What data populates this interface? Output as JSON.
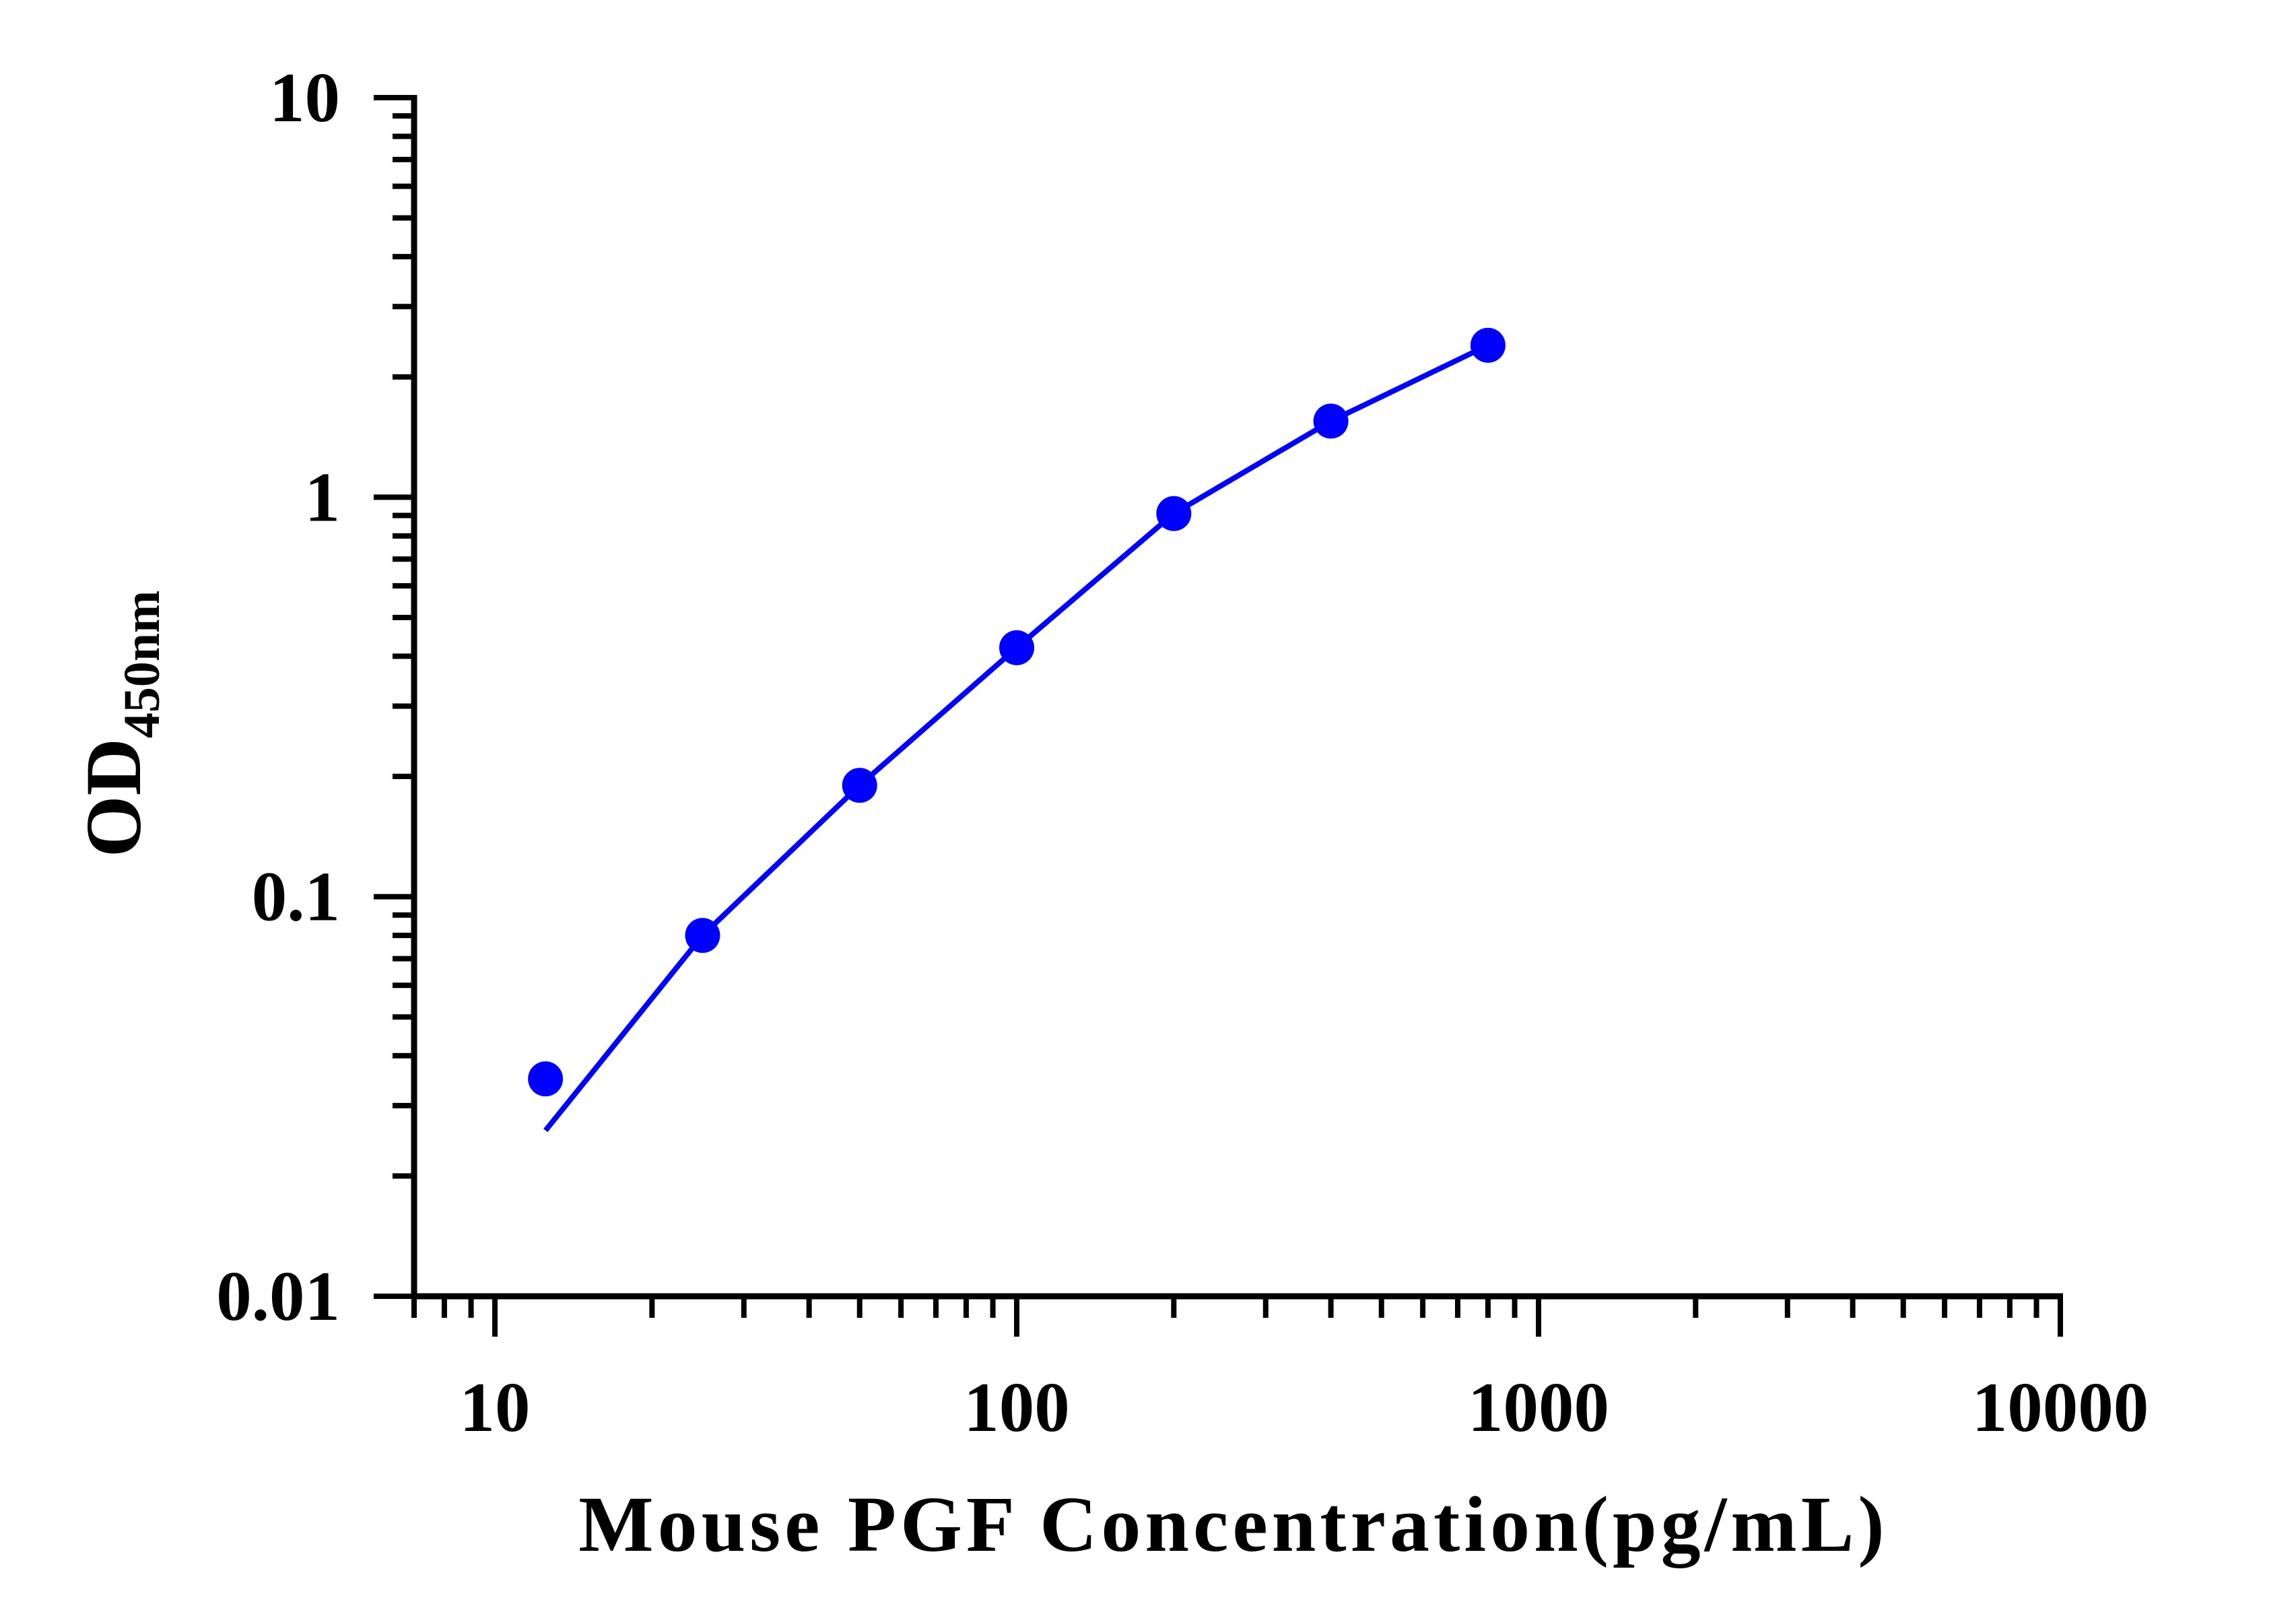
{
  "chart_data": {
    "type": "scatter",
    "title": "",
    "xlabel": "Mouse PGF Concentration(pg/mL)",
    "ylabel": {
      "main": "OD",
      "subscript": "450nm"
    },
    "x_scale": "log",
    "y_scale": "log",
    "xlim": [
      7,
      10000
    ],
    "ylim": [
      0.01,
      10
    ],
    "x_ticks": [
      "10",
      "100",
      "1000",
      "10000"
    ],
    "y_ticks": [
      "0.01",
      "0.1",
      "1",
      "10"
    ],
    "grid": false,
    "series": [
      {
        "color": "#0000ff",
        "points": [
          {
            "x": 12.5,
            "y": 0.035
          },
          {
            "x": 25,
            "y": 0.08
          },
          {
            "x": 50,
            "y": 0.19
          },
          {
            "x": 100,
            "y": 0.42
          },
          {
            "x": 200,
            "y": 0.91
          },
          {
            "x": 400,
            "y": 1.55
          },
          {
            "x": 800,
            "y": 2.4
          }
        ],
        "fit_line": [
          {
            "x": 12.5,
            "y": 0.026
          },
          {
            "x": 25,
            "y": 0.08
          },
          {
            "x": 50,
            "y": 0.19
          },
          {
            "x": 100,
            "y": 0.42
          },
          {
            "x": 200,
            "y": 0.91
          },
          {
            "x": 400,
            "y": 1.55
          },
          {
            "x": 800,
            "y": 2.4
          }
        ]
      }
    ]
  }
}
